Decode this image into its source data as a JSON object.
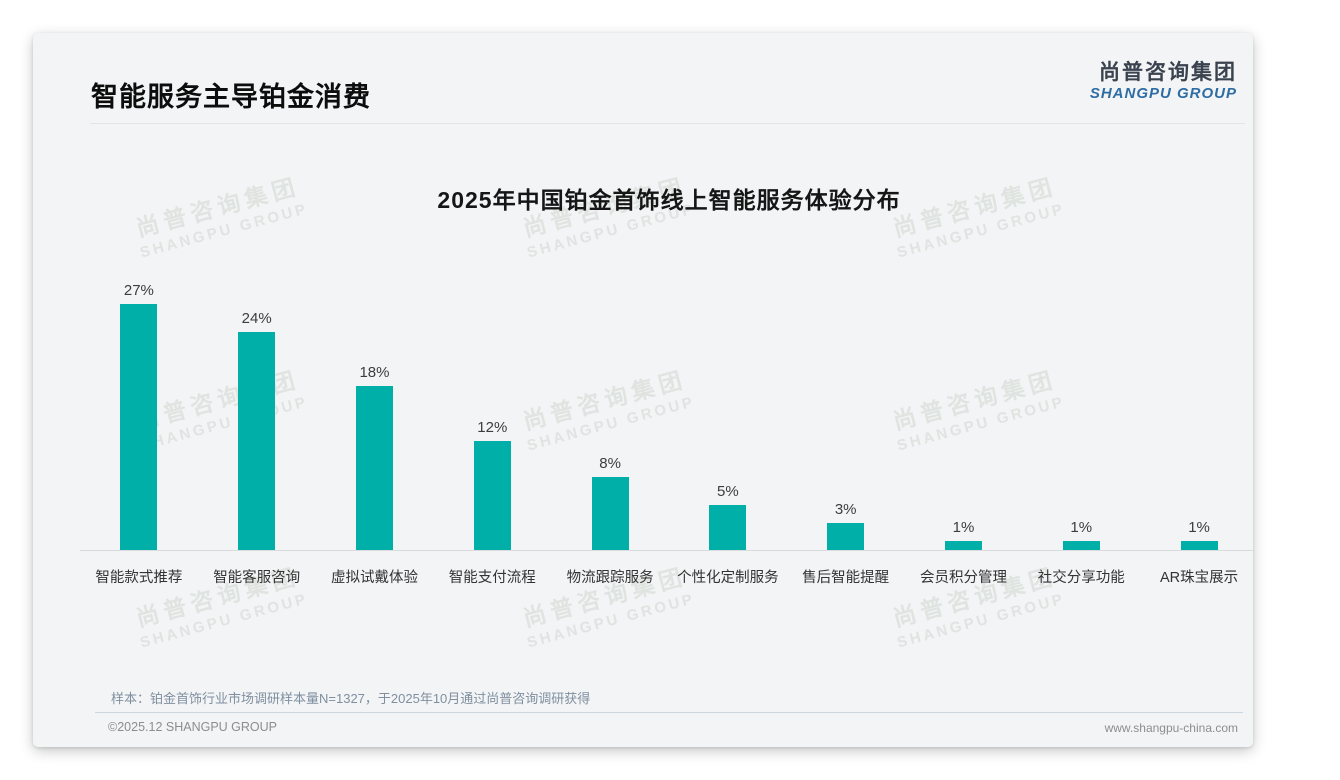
{
  "page": {
    "header": {
      "title": "智能服务主导铂金消费"
    },
    "logo": {
      "cn": "尚普咨询集团",
      "en": "SHANGPU GROUP"
    },
    "watermark": {
      "cn": "尚普咨询集团",
      "en": "SHANGPU GROUP"
    },
    "footnote": "样本：铂金首饰行业市场调研样本量N=1327，于2025年10月通过尚普咨询调研获得",
    "footer": {
      "left": "©2025.12 SHANGPU GROUP",
      "right": "www.shangpu-china.com"
    }
  },
  "colors": {
    "bar_teal": "#00afa7",
    "logo_blue": "#2e6da4",
    "logo_dark": "#39424e",
    "card_bg": "#f3f4f5",
    "footnote_gray_blue": "#7f8fa0"
  },
  "chart_data": {
    "type": "bar",
    "title": "2025年中国铂金首饰线上智能服务体验分布",
    "categories": [
      "智能款式推荐",
      "智能客服咨询",
      "虚拟试戴体验",
      "智能支付流程",
      "物流跟踪服务",
      "个性化定制服务",
      "售后智能提醒",
      "会员积分管理",
      "社交分享功能",
      "AR珠宝展示"
    ],
    "values": [
      27,
      24,
      18,
      12,
      8,
      5,
      3,
      1,
      1,
      1
    ],
    "unit": "%",
    "bar_color": "#00afa7",
    "xlabel": "",
    "ylabel": "",
    "ylim": [
      0,
      30
    ],
    "grid": false,
    "legend": "none",
    "data_labels": true
  }
}
